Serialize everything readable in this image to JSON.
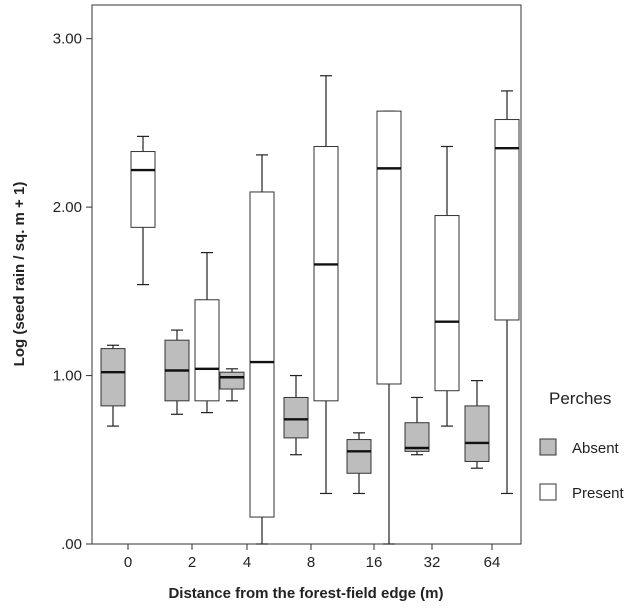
{
  "chart_data": {
    "type": "boxplot",
    "xlabel": "Distance from the forest-field edge (m)",
    "ylabel": "Log (seed rain / sq. m + 1)",
    "ylim": [
      0,
      3.2
    ],
    "yticks": [
      0,
      1,
      2,
      3
    ],
    "ytick_labels": [
      ".00",
      "1.00",
      "2.00",
      "3.00"
    ],
    "categories": [
      "0",
      "2",
      "4",
      "8",
      "16",
      "32",
      "64"
    ],
    "legend": {
      "title": "Perches",
      "position": "right"
    },
    "series": [
      {
        "name": "Absent",
        "color": "#bdbdbd",
        "boxes": [
          {
            "min": 0.7,
            "q1": 0.82,
            "median": 1.02,
            "q3": 1.16,
            "max": 1.18
          },
          {
            "min": 0.77,
            "q1": 0.85,
            "median": 1.03,
            "q3": 1.21,
            "max": 1.27
          },
          {
            "min": 0.85,
            "q1": 0.92,
            "median": 0.99,
            "q3": 1.02,
            "max": 1.04
          },
          {
            "min": 0.53,
            "q1": 0.63,
            "median": 0.74,
            "q3": 0.87,
            "max": 1.0
          },
          {
            "min": 0.3,
            "q1": 0.42,
            "median": 0.55,
            "q3": 0.62,
            "max": 0.66
          },
          {
            "min": 0.53,
            "q1": 0.55,
            "median": 0.57,
            "q3": 0.72,
            "max": 0.87
          },
          {
            "min": 0.45,
            "q1": 0.49,
            "median": 0.6,
            "q3": 0.82,
            "max": 0.97
          }
        ]
      },
      {
        "name": "Present",
        "color": "#ffffff",
        "boxes": [
          {
            "min": 1.54,
            "q1": 1.88,
            "median": 2.22,
            "q3": 2.33,
            "max": 2.42
          },
          {
            "min": 0.78,
            "q1": 0.85,
            "median": 1.04,
            "q3": 1.45,
            "max": 1.73
          },
          {
            "min": 0.0,
            "q1": 0.16,
            "median": 1.08,
            "q3": 2.09,
            "max": 2.31
          },
          {
            "min": 0.3,
            "q1": 0.85,
            "median": 1.66,
            "q3": 2.36,
            "max": 2.78
          },
          {
            "min": 0.0,
            "q1": 0.95,
            "median": 2.23,
            "q3": 2.57,
            "max": 2.57
          },
          {
            "min": 0.7,
            "q1": 0.91,
            "median": 1.32,
            "q3": 1.95,
            "max": 2.36
          },
          {
            "min": 0.3,
            "q1": 1.33,
            "median": 2.35,
            "q3": 2.52,
            "max": 2.69
          }
        ]
      }
    ]
  }
}
